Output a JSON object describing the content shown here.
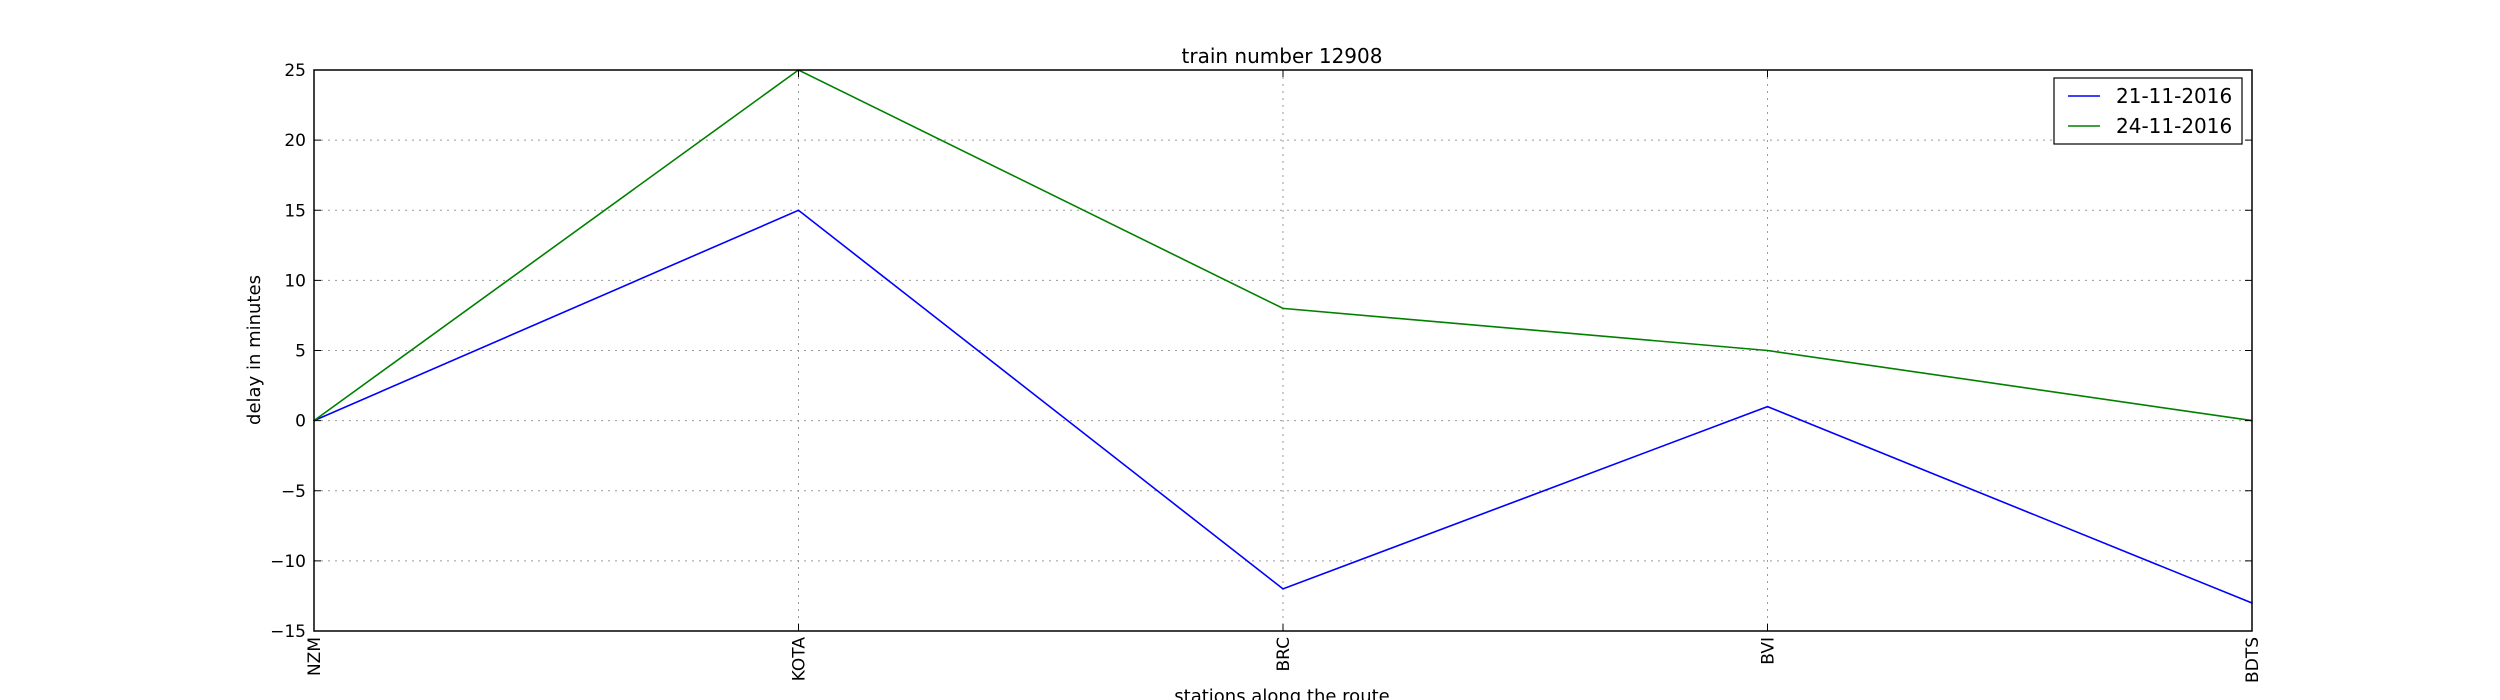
{
  "chart_data": {
    "type": "line",
    "title": "train number 12908",
    "xlabel": "stations along the route",
    "ylabel": "delay in minutes",
    "categories": [
      "NZM",
      "KOTA",
      "BRC",
      "BVI",
      "BDTS"
    ],
    "ylim": [
      -15,
      25
    ],
    "yticks": [
      -15,
      -10,
      -5,
      0,
      5,
      10,
      15,
      20,
      25
    ],
    "ytick_labels": [
      "−15",
      "−10",
      "−5",
      "0",
      "5",
      "10",
      "15",
      "20",
      "25"
    ],
    "grid": true,
    "legend_position": "top-right",
    "series": [
      {
        "name": "21-11-2016",
        "color": "#0000ff",
        "values": [
          0,
          15,
          -12,
          1,
          -13
        ]
      },
      {
        "name": "24-11-2016",
        "color": "#008000",
        "values": [
          0,
          25,
          8,
          5,
          0
        ]
      }
    ]
  }
}
